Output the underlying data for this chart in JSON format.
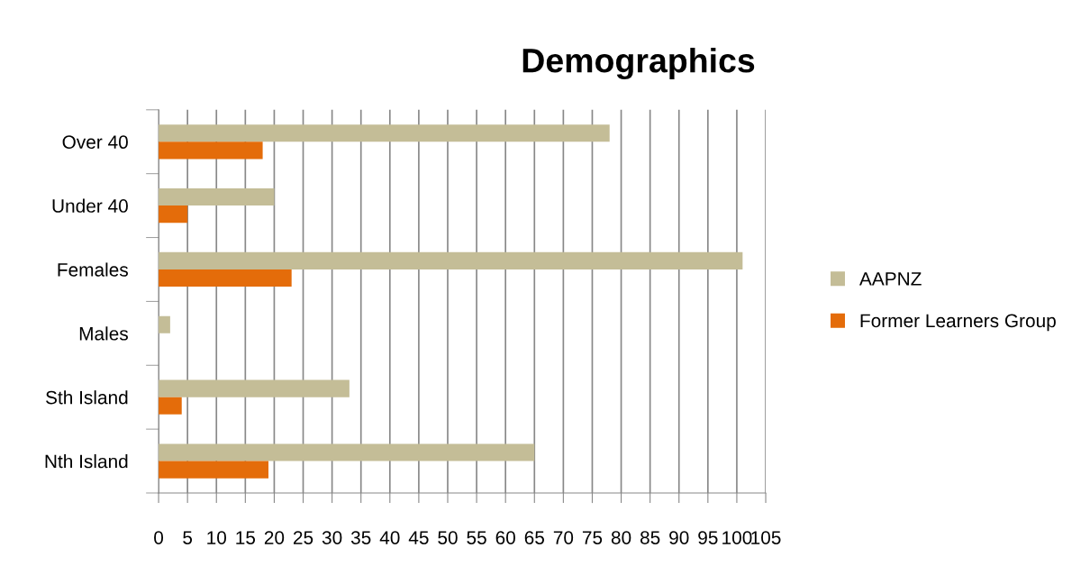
{
  "chart_data": {
    "type": "bar",
    "orientation": "horizontal",
    "title": "Demographics",
    "categories": [
      "Over 40",
      "Under 40",
      "Females",
      "Males",
      "Sth Island",
      "Nth Island"
    ],
    "series": [
      {
        "name": "AAPNZ",
        "color": "#c4bd97",
        "values": [
          78,
          20,
          101,
          2,
          33,
          65
        ]
      },
      {
        "name": "Former Learners Group",
        "color": "#e46c0a",
        "values": [
          18,
          5,
          23,
          0,
          4,
          19
        ]
      }
    ],
    "xlim": [
      0,
      105
    ],
    "xticks": [
      0,
      5,
      10,
      15,
      20,
      25,
      30,
      35,
      40,
      45,
      50,
      55,
      60,
      65,
      70,
      75,
      80,
      85,
      90,
      95,
      100,
      105
    ],
    "grid": "x",
    "legend": "right"
  }
}
